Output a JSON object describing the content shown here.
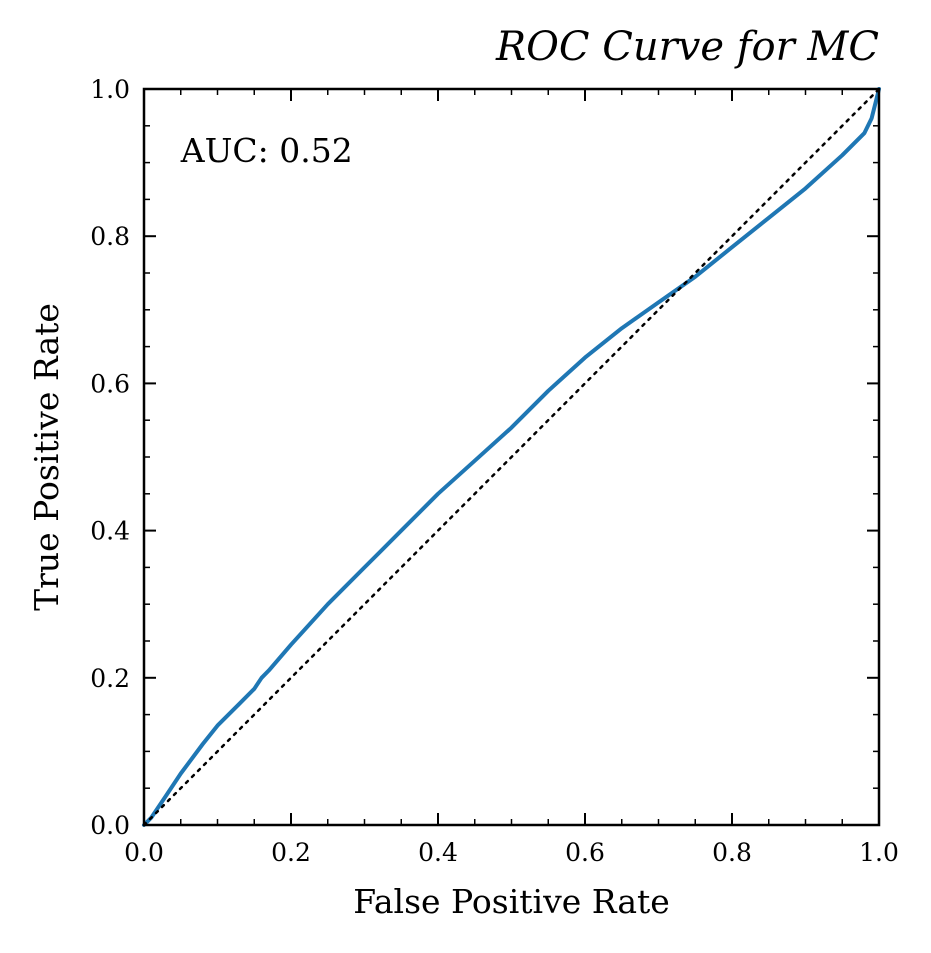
{
  "chart_data": {
    "type": "line",
    "title": "ROC Curve for MC",
    "xlabel": "False Positive Rate",
    "ylabel": "True Positive Rate",
    "xlim": [
      0.0,
      1.0
    ],
    "ylim": [
      0.0,
      1.0
    ],
    "x_ticks": [
      "0.0",
      "0.2",
      "0.4",
      "0.6",
      "0.8",
      "1.0"
    ],
    "y_ticks": [
      "0.0",
      "0.2",
      "0.4",
      "0.6",
      "0.8",
      "1.0"
    ],
    "grid": false,
    "annotation": "AUC: 0.52",
    "colors": {
      "roc": "#1f77b4",
      "reference": "#000000"
    },
    "series": [
      {
        "style": "solid",
        "x": [
          0.0,
          0.01,
          0.02,
          0.03,
          0.05,
          0.08,
          0.1,
          0.13,
          0.15,
          0.16,
          0.17,
          0.2,
          0.25,
          0.3,
          0.35,
          0.4,
          0.45,
          0.5,
          0.55,
          0.6,
          0.65,
          0.7,
          0.75,
          0.8,
          0.85,
          0.9,
          0.95,
          0.98,
          0.99,
          1.0
        ],
        "y": [
          0.0,
          0.01,
          0.025,
          0.04,
          0.07,
          0.11,
          0.135,
          0.165,
          0.185,
          0.2,
          0.21,
          0.245,
          0.3,
          0.35,
          0.4,
          0.45,
          0.495,
          0.54,
          0.59,
          0.635,
          0.675,
          0.71,
          0.745,
          0.785,
          0.825,
          0.865,
          0.91,
          0.94,
          0.96,
          1.0
        ]
      },
      {
        "style": "dotted",
        "x": [
          0.0,
          1.0
        ],
        "y": [
          0.0,
          1.0
        ]
      }
    ]
  }
}
